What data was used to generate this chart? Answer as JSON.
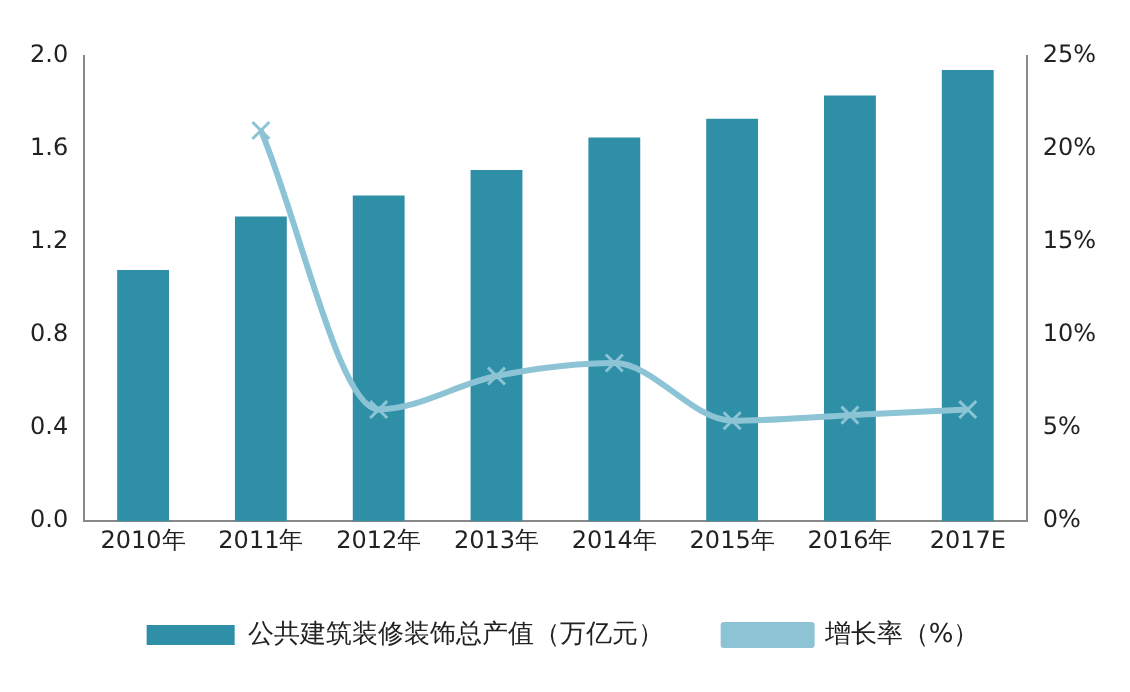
{
  "chart_data": {
    "type": "bar",
    "categories": [
      "2010年",
      "2011年",
      "2012年",
      "2013年",
      "2014年",
      "2015年",
      "2016年",
      "2017E"
    ],
    "series": [
      {
        "name": "公共建筑装修装饰总产值（万亿元）",
        "color": "#2e8fa6",
        "values": [
          1.08,
          1.31,
          1.4,
          1.51,
          1.65,
          1.73,
          1.83,
          1.94
        ]
      },
      {
        "name": "增长率（%）",
        "type": "line",
        "axis": "y2",
        "color": "#8cc4d6",
        "marker": "cross",
        "values": [
          null,
          21.0,
          6.0,
          7.8,
          8.5,
          5.4,
          5.7,
          6.0
        ]
      }
    ],
    "ylim": [
      0,
      2.0
    ],
    "yticks": [
      {
        "value": 0,
        "label": "0.0"
      },
      0.4,
      0.8,
      1.2,
      1.6,
      {
        "value": 2,
        "label": "2.0"
      }
    ],
    "y2lim": [
      0,
      25
    ],
    "y2ticks": [
      {
        "value": 0,
        "label": "0%"
      },
      {
        "value": 5,
        "label": "5%"
      },
      {
        "value": 10,
        "label": "10%"
      },
      {
        "value": 15,
        "label": "15%"
      },
      {
        "value": 20,
        "label": "20%"
      },
      {
        "value": 25,
        "label": "25%"
      }
    ],
    "grid": false,
    "legend": "bottom"
  }
}
